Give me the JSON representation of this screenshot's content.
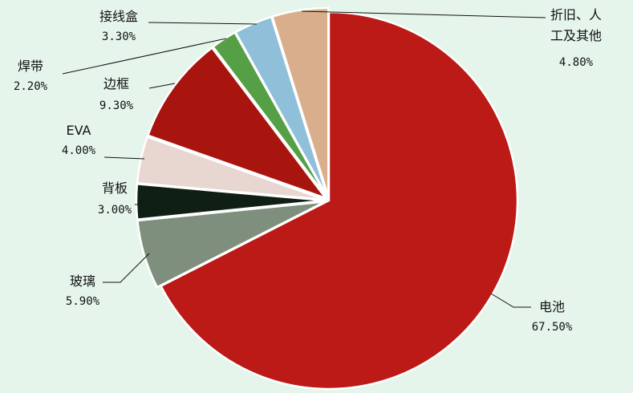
{
  "chart_data": {
    "type": "pie",
    "categories": [
      "电池",
      "玻璃",
      "背板",
      "EVA",
      "边框",
      "焊带",
      "接线盒",
      "折旧、人工及其他"
    ],
    "values": [
      67.5,
      5.9,
      3.0,
      4.0,
      9.3,
      2.2,
      3.3,
      4.8
    ],
    "value_labels": [
      "67.50%",
      "5.90%",
      "3.00%",
      "4.00%",
      "9.30%",
      "2.20%",
      "3.30%",
      "4.80%"
    ],
    "colors": [
      "#bb1a16",
      "#7f8f7e",
      "#0f1f14",
      "#e8d6d0",
      "#a8150f",
      "#55a046",
      "#8fbfd9",
      "#d9ae8c"
    ]
  }
}
